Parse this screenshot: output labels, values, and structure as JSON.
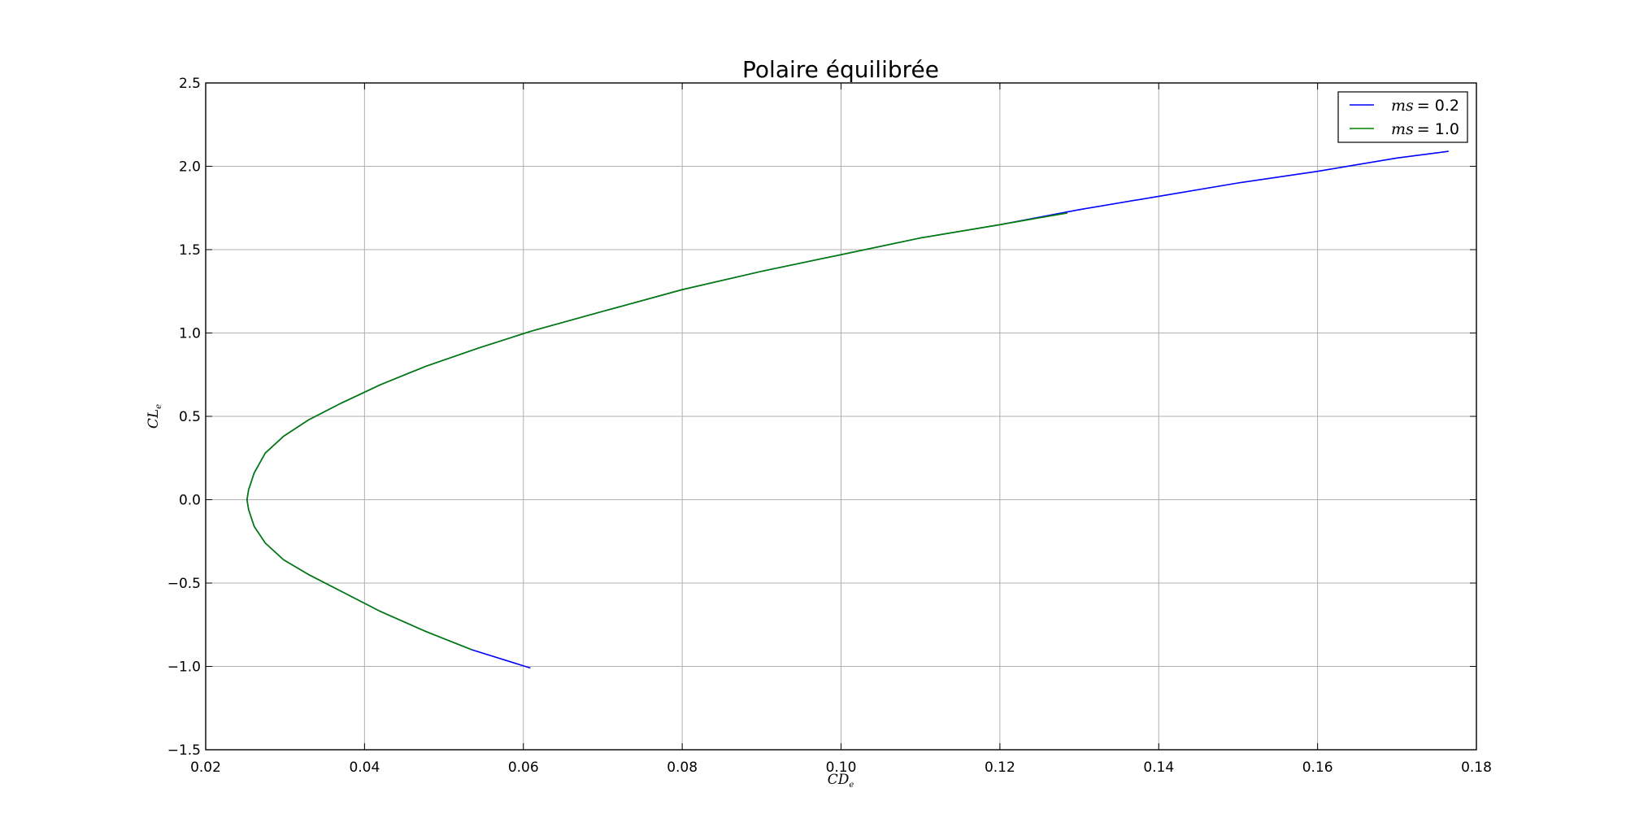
{
  "chart_data": {
    "type": "line",
    "title": "Polaire équilibrée",
    "xlabel": "CD",
    "xlabel_sub": "e",
    "ylabel": "CL",
    "ylabel_sub": "e",
    "xlim": [
      0.02,
      0.18
    ],
    "ylim": [
      -1.5,
      2.5
    ],
    "xticks": [
      0.02,
      0.04,
      0.06,
      0.08,
      0.1,
      0.12,
      0.14,
      0.16,
      0.18
    ],
    "xtick_labels": [
      "0.02",
      "0.04",
      "0.06",
      "0.08",
      "0.10",
      "0.12",
      "0.14",
      "0.16",
      "0.18"
    ],
    "yticks": [
      -1.5,
      -1.0,
      -0.5,
      0.0,
      0.5,
      1.0,
      1.5,
      2.0,
      2.5
    ],
    "ytick_labels": [
      "−1.5",
      "−1.0",
      "−0.5",
      "0.0",
      "0.5",
      "1.0",
      "1.5",
      "2.0",
      "2.5"
    ],
    "grid": true,
    "legend_position": "top-right",
    "series": [
      {
        "name": "ms = 0.2",
        "legend_math": "ms",
        "legend_value": "= 0.2",
        "color": "#0000ff",
        "x": [
          0.0609,
          0.0535,
          0.0477,
          0.042,
          0.0371,
          0.033,
          0.0298,
          0.0275,
          0.0261,
          0.0254,
          0.0252,
          0.0254,
          0.0261,
          0.0275,
          0.0298,
          0.033,
          0.0371,
          0.042,
          0.0477,
          0.0544,
          0.0609,
          0.07,
          0.08,
          0.09,
          0.1,
          0.11,
          0.12,
          0.13,
          0.14,
          0.15,
          0.16,
          0.17,
          0.1765
        ],
        "y": [
          -1.01,
          -0.9,
          -0.79,
          -0.67,
          -0.55,
          -0.45,
          -0.36,
          -0.26,
          -0.16,
          -0.06,
          0.0,
          0.06,
          0.16,
          0.28,
          0.38,
          0.48,
          0.58,
          0.69,
          0.8,
          0.91,
          1.01,
          1.13,
          1.26,
          1.37,
          1.47,
          1.57,
          1.65,
          1.74,
          1.82,
          1.9,
          1.97,
          2.05,
          2.09
        ]
      },
      {
        "name": "ms = 1.0",
        "legend_math": "ms",
        "legend_value": "= 1.0",
        "color": "#008000",
        "x": [
          0.0535,
          0.0477,
          0.042,
          0.0371,
          0.033,
          0.0298,
          0.0275,
          0.0261,
          0.0254,
          0.0252,
          0.0254,
          0.0261,
          0.0275,
          0.0298,
          0.033,
          0.0371,
          0.042,
          0.0477,
          0.0544,
          0.0609,
          0.07,
          0.08,
          0.09,
          0.1,
          0.11,
          0.12,
          0.1285
        ],
        "y": [
          -0.9,
          -0.79,
          -0.67,
          -0.55,
          -0.45,
          -0.36,
          -0.26,
          -0.16,
          -0.06,
          0.0,
          0.06,
          0.16,
          0.28,
          0.38,
          0.48,
          0.58,
          0.69,
          0.8,
          0.91,
          1.01,
          1.13,
          1.26,
          1.37,
          1.47,
          1.57,
          1.65,
          1.72
        ]
      }
    ]
  }
}
